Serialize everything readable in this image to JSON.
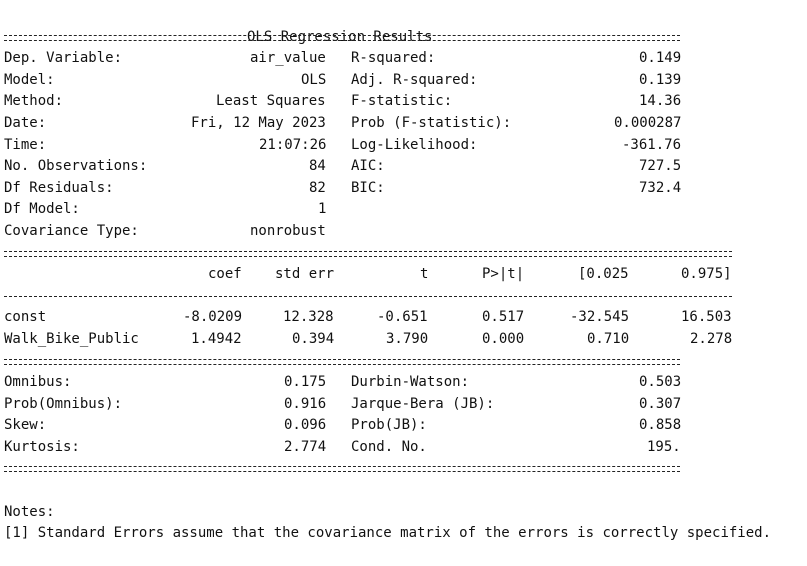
{
  "title": "OLS Regression Results",
  "summary": {
    "left": [
      {
        "label": "Dep. Variable:",
        "value": "air_value"
      },
      {
        "label": "Model:",
        "value": "OLS"
      },
      {
        "label": "Method:",
        "value": "Least Squares"
      },
      {
        "label": "Date:",
        "value": "Fri, 12 May 2023"
      },
      {
        "label": "Time:",
        "value": "21:07:26"
      },
      {
        "label": "No. Observations:",
        "value": "84"
      },
      {
        "label": "Df Residuals:",
        "value": "82"
      },
      {
        "label": "Df Model:",
        "value": "1"
      },
      {
        "label": "Covariance Type:",
        "value": "nonrobust"
      }
    ],
    "right": [
      {
        "label": "R-squared:",
        "value": "0.149"
      },
      {
        "label": "Adj. R-squared:",
        "value": "0.139"
      },
      {
        "label": "F-statistic:",
        "value": "14.36"
      },
      {
        "label": "Prob (F-statistic):",
        "value": "0.000287"
      },
      {
        "label": "Log-Likelihood:",
        "value": "-361.76"
      },
      {
        "label": "AIC:",
        "value": "727.5"
      },
      {
        "label": "BIC:",
        "value": "732.4"
      }
    ]
  },
  "coef_table": {
    "headers": [
      "coef",
      "std err",
      "t",
      "P>|t|",
      "[0.025",
      "0.975]"
    ],
    "rows": [
      {
        "name": "const",
        "values": [
          "-8.0209",
          "12.328",
          "-0.651",
          "0.517",
          "-32.545",
          "16.503"
        ]
      },
      {
        "name": "Walk_Bike_Public",
        "values": [
          "1.4942",
          "0.394",
          "3.790",
          "0.000",
          "0.710",
          "2.278"
        ]
      }
    ]
  },
  "diagnostics": {
    "left": [
      {
        "label": "Omnibus:",
        "value": "0.175"
      },
      {
        "label": "Prob(Omnibus):",
        "value": "0.916"
      },
      {
        "label": "Skew:",
        "value": "0.096"
      },
      {
        "label": "Kurtosis:",
        "value": "2.774"
      }
    ],
    "right": [
      {
        "label": "Durbin-Watson:",
        "value": "0.503"
      },
      {
        "label": "Jarque-Bera (JB):",
        "value": "0.307"
      },
      {
        "label": "Prob(JB):",
        "value": "0.858"
      },
      {
        "label": "Cond. No.",
        "value": "195."
      }
    ]
  },
  "notes": {
    "heading": "Notes:",
    "items": [
      "[1] Standard Errors assume that the covariance matrix of the errors is correctly specified."
    ]
  }
}
